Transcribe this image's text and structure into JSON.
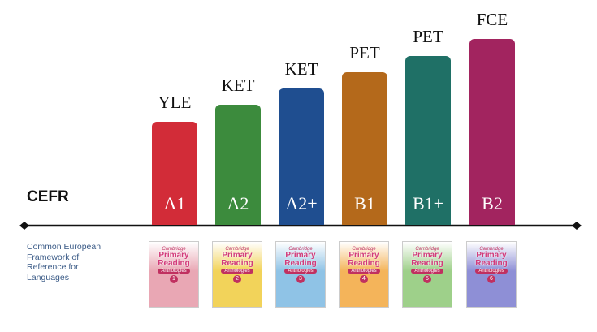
{
  "axis_label": "CEFR",
  "description": "Common European Framework of Reference for Languages",
  "levels": [
    {
      "exam": "YLE",
      "cefr": "A1",
      "color": "#d22c38",
      "book": {
        "brand": "Cambridge",
        "title": "Primary Reading",
        "subtitle": "Anthologies",
        "level": "1",
        "color": "#e9a7b4"
      }
    },
    {
      "exam": "KET",
      "cefr": "A2",
      "color": "#3c8b3d",
      "book": {
        "brand": "Cambridge",
        "title": "Primary Reading",
        "subtitle": "Anthologies",
        "level": "2",
        "color": "#f2d35a"
      }
    },
    {
      "exam": "KET",
      "cefr": "A2+",
      "color": "#1f4e90",
      "book": {
        "brand": "Cambridge",
        "title": "Primary Reading",
        "subtitle": "Anthologies",
        "level": "3",
        "color": "#8fc3e6"
      }
    },
    {
      "exam": "PET",
      "cefr": "B1",
      "color": "#b4691b",
      "book": {
        "brand": "Cambridge",
        "title": "Primary Reading",
        "subtitle": "Anthologies",
        "level": "4",
        "color": "#f4b45a"
      }
    },
    {
      "exam": "PET",
      "cefr": "B1+",
      "color": "#1f7066",
      "book": {
        "brand": "Cambridge",
        "title": "Primary Reading",
        "subtitle": "Anthologies",
        "level": "5",
        "color": "#9ed08a"
      }
    },
    {
      "exam": "FCE",
      "cefr": "B2",
      "color": "#a2245f",
      "book": {
        "brand": "Cambridge",
        "title": "Primary Reading",
        "subtitle": "Anthologies",
        "level": "6",
        "color": "#8e8fd6"
      }
    }
  ]
}
